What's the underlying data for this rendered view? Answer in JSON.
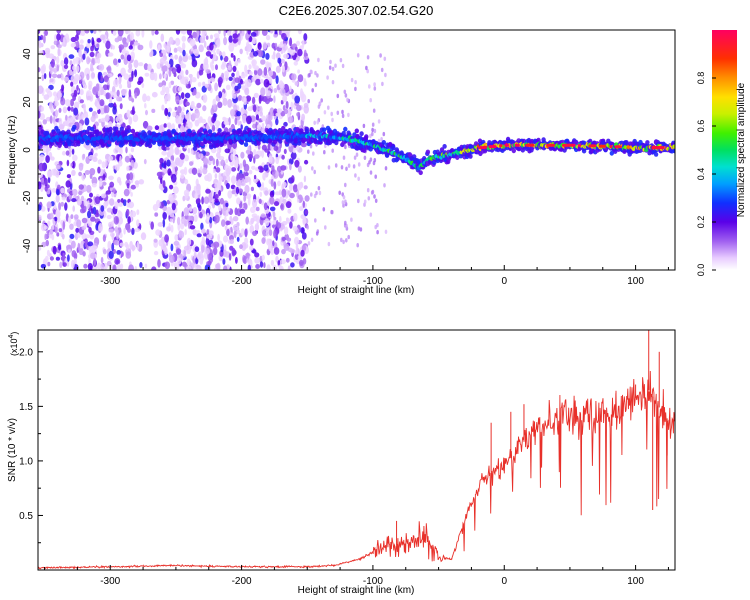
{
  "chart_data": [
    {
      "type": "heatmap",
      "title": "C2E6.2025.307.02.54.G20",
      "xlabel": "Height of straight line (km)",
      "ylabel": "Frequency (Hz)",
      "xlim": [
        -355,
        130
      ],
      "ylim": [
        -50,
        50
      ],
      "xticks": [
        -300,
        -200,
        -100,
        0,
        100
      ],
      "xtick_labels": [
        "-300",
        "-200",
        "-100",
        "0",
        "100"
      ],
      "yticks": [
        -40,
        -20,
        0,
        20,
        40
      ],
      "ytick_labels": [
        "-40",
        "-20",
        "0",
        "20",
        "40"
      ],
      "colorbar": {
        "label": "Normalized spectral amplitude",
        "range": [
          0.0,
          1.0
        ],
        "ticks": [
          0.0,
          0.2,
          0.4,
          0.6,
          0.8
        ],
        "tick_labels": [
          "0.0",
          "0.2",
          "0.4",
          "0.6",
          "0.8"
        ]
      },
      "noise_region_x": [
        -355,
        -150
      ],
      "ridge": {
        "x": [
          -355,
          -300,
          -250,
          -200,
          -150,
          -120,
          -100,
          -80,
          -65,
          -55,
          -40,
          -20,
          0,
          50,
          100,
          130
        ],
        "frequency": [
          5,
          5,
          5,
          5,
          6,
          5,
          2,
          -2,
          -7,
          -3,
          -2,
          1,
          2,
          2,
          1,
          1
        ],
        "amplitude": [
          0.42,
          0.4,
          0.42,
          0.42,
          0.45,
          0.5,
          0.55,
          0.58,
          0.55,
          0.62,
          0.7,
          0.9,
          0.93,
          0.82,
          0.9,
          0.85
        ]
      }
    },
    {
      "type": "line",
      "xlabel": "Height of straight line (km)",
      "ylabel": "SNR (10 * v/v)",
      "scale_label": "(x10",
      "scale_exponent": "4",
      "scale_close": ")",
      "xlim": [
        -355,
        130
      ],
      "ylim": [
        0,
        2.2
      ],
      "xticks": [
        -300,
        -200,
        -100,
        0,
        100
      ],
      "xtick_labels": [
        "-300",
        "-200",
        "-100",
        "0",
        "100"
      ],
      "yticks": [
        0.5,
        1.0,
        1.5,
        2.0
      ],
      "ytick_labels": [
        "0.5",
        "1.0",
        "1.5",
        "2.0"
      ],
      "series": [
        {
          "name": "SNR",
          "color": "#e8302a",
          "x": [
            -355,
            -300,
            -250,
            -200,
            -150,
            -130,
            -110,
            -95,
            -85,
            -70,
            -60,
            -50,
            -40,
            -30,
            -20,
            -10,
            0,
            10,
            20,
            30,
            40,
            50,
            60,
            70,
            80,
            90,
            100,
            110,
            120,
            130
          ],
          "y": [
            0.02,
            0.03,
            0.04,
            0.03,
            0.03,
            0.04,
            0.1,
            0.2,
            0.22,
            0.25,
            0.3,
            0.12,
            0.1,
            0.45,
            0.75,
            0.9,
            0.95,
            1.1,
            1.25,
            1.32,
            1.4,
            1.42,
            1.38,
            1.42,
            1.45,
            1.5,
            1.58,
            1.65,
            1.45,
            1.3
          ]
        }
      ],
      "spikes": {
        "x": [
          -82,
          -10,
          5,
          15,
          85,
          100,
          110,
          113,
          118,
          124
        ],
        "y": [
          0.45,
          1.35,
          1.45,
          1.52,
          1.62,
          1.7,
          2.2,
          0.55,
          2.0,
          1.05
        ]
      }
    }
  ]
}
